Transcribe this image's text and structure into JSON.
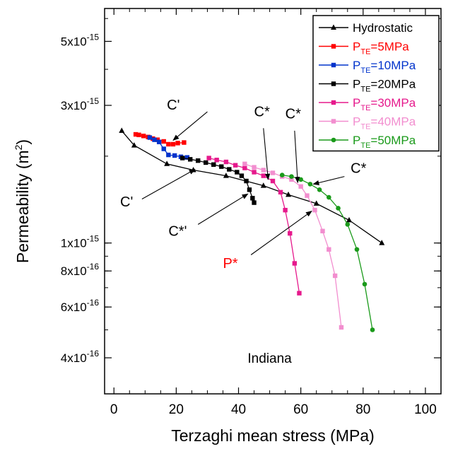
{
  "chart_data": {
    "type": "line",
    "title": "",
    "xlabel": "Terzaghi mean stress (MPa)",
    "ylabel_main": "Permeability (m",
    "ylabel_sup": "2",
    "ylabel_close": ")",
    "xlim": [
      -3,
      105
    ],
    "ylim": [
      3e-16,
      6.5e-15
    ],
    "yscale": "log",
    "xticks": [
      0,
      20,
      40,
      60,
      80,
      100
    ],
    "yticks": [
      {
        "value": 5e-15,
        "mant": "5x10",
        "exp": "-15"
      },
      {
        "value": 3e-15,
        "mant": "3x10",
        "exp": "-15"
      },
      {
        "value": 1e-15,
        "mant": "1x10",
        "exp": "-15"
      },
      {
        "value": 8e-16,
        "mant": "8x10",
        "exp": "-16"
      },
      {
        "value": 6e-16,
        "mant": "6x10",
        "exp": "-16"
      },
      {
        "value": 4e-16,
        "mant": "4x10",
        "exp": "-16"
      }
    ],
    "legend_position": "top-right",
    "sample_label": "Indiana",
    "series": [
      {
        "name": "Hydrostatic",
        "name_base": "Hydrostatic",
        "name_sub": "",
        "name_tail": "",
        "color": "#000000",
        "marker": "triangle",
        "x": [
          2.5,
          6.5,
          17,
          25.5,
          36,
          48,
          56,
          65,
          75.5,
          86
        ],
        "y": [
          2.45e-15,
          2.18e-15,
          1.88e-15,
          1.79e-15,
          1.71e-15,
          1.58e-15,
          1.47e-15,
          1.37e-15,
          1.2e-15,
          1e-15
        ]
      },
      {
        "name": "PTE=5MPa",
        "name_base": "P",
        "name_sub": "TE",
        "name_tail": "=5MPa",
        "color": "#ff0000",
        "marker": "square",
        "x": [
          7,
          8,
          9.5,
          11,
          12.5,
          14,
          16,
          17.5,
          19,
          20.5,
          22.5
        ],
        "y": [
          2.38e-15,
          2.37e-15,
          2.35e-15,
          2.33e-15,
          2.3e-15,
          2.28e-15,
          2.25e-15,
          2.2e-15,
          2.2e-15,
          2.22e-15,
          2.23e-15
        ]
      },
      {
        "name": "PTE=10MPa",
        "name_base": "P",
        "name_sub": "TE",
        "name_tail": "=10MPa",
        "color": "#0033cc",
        "marker": "square",
        "x": [
          11.5,
          13,
          14.5,
          16,
          17.5,
          19.5,
          21.5,
          23.5
        ],
        "y": [
          2.32e-15,
          2.28e-15,
          2.24e-15,
          2.12e-15,
          2.02e-15,
          2.01e-15,
          1.99e-15,
          1.98e-15
        ]
      },
      {
        "name": "PTE=20MPa",
        "name_base": "P",
        "name_sub": "TE",
        "name_tail": "=20MPa",
        "color": "#000000",
        "marker": "square",
        "x": [
          22,
          24.5,
          27,
          29.5,
          32,
          34.5,
          37,
          39.5,
          41,
          42.5,
          43.5,
          44.5,
          45
        ],
        "y": [
          1.97e-15,
          1.95e-15,
          1.93e-15,
          1.9e-15,
          1.87e-15,
          1.84e-15,
          1.8e-15,
          1.76e-15,
          1.71e-15,
          1.64e-15,
          1.53e-15,
          1.43e-15,
          1.38e-15
        ]
      },
      {
        "name": "PTE=30MPa",
        "name_base": "P",
        "name_sub": "TE",
        "name_tail": "=30MPa",
        "color": "#e6198c",
        "marker": "square",
        "x": [
          30.5,
          33,
          36,
          39,
          42,
          45,
          48,
          51,
          53.5,
          55,
          56.5,
          58,
          59.5
        ],
        "y": [
          1.97e-15,
          1.94e-15,
          1.91e-15,
          1.86e-15,
          1.82e-15,
          1.76e-15,
          1.71e-15,
          1.64e-15,
          1.5e-15,
          1.3e-15,
          1.08e-15,
          8.5e-16,
          6.7e-16
        ]
      },
      {
        "name": "PTE=40MPa",
        "name_base": "P",
        "name_sub": "TE",
        "name_tail": "=40MPa",
        "color": "#f28ecf",
        "marker": "square",
        "x": [
          42,
          45,
          48,
          51,
          54,
          57,
          60,
          62,
          64.5,
          67,
          69,
          71,
          73
        ],
        "y": [
          1.88e-15,
          1.83e-15,
          1.79e-15,
          1.75e-15,
          1.7e-15,
          1.66e-15,
          1.57e-15,
          1.46e-15,
          1.3e-15,
          1.1e-15,
          9.5e-16,
          7.7e-16,
          5.1e-16
        ]
      },
      {
        "name": "PTE=50MPa",
        "name_base": "P",
        "name_sub": "TE",
        "name_tail": "=50MPa",
        "color": "#1a9a1a",
        "marker": "circle",
        "x": [
          54,
          57,
          60,
          63,
          66,
          69,
          72,
          75,
          78,
          80.5,
          83
        ],
        "y": [
          1.72e-15,
          1.7e-15,
          1.66e-15,
          1.6e-15,
          1.53e-15,
          1.44e-15,
          1.32e-15,
          1.16e-15,
          9.5e-16,
          7.2e-16,
          5e-16
        ]
      }
    ],
    "annotations": [
      {
        "text": "C'",
        "color": "#000000",
        "tx": 17,
        "ty": 2.9e-15,
        "ax": 19,
        "ay": 2.27e-15,
        "lx": 30,
        "ly": 2.85e-15,
        "anchor": "start"
      },
      {
        "text": "C'",
        "color": "#000000",
        "tx": 2,
        "ty": 1.34e-15,
        "ax": 26,
        "ay": 1.8e-15,
        "lx": 9,
        "ly": 1.42e-15,
        "anchor": "start"
      },
      {
        "text": "C*",
        "color": "#000000",
        "tx": 45,
        "ty": 2.75e-15,
        "ax": 49.5,
        "ay": 1.66e-15,
        "lx": 48,
        "ly": 2.5e-15,
        "anchor": "start"
      },
      {
        "text": "C*",
        "color": "#000000",
        "tx": 55,
        "ty": 2.7e-15,
        "ax": 59,
        "ay": 1.62e-15,
        "lx": 58,
        "ly": 2.45e-15,
        "anchor": "start"
      },
      {
        "text": "C*",
        "color": "#000000",
        "tx": 76,
        "ty": 1.75e-15,
        "ax": 64,
        "ay": 1.6e-15,
        "lx": 74,
        "ly": 1.7e-15,
        "anchor": "start"
      },
      {
        "text": "C*'",
        "color": "#000000",
        "tx": 17.5,
        "ty": 1.06e-15,
        "ax": 43,
        "ay": 1.48e-15,
        "lx": 27,
        "ly": 1.16e-15,
        "anchor": "start"
      },
      {
        "text": "P*",
        "color": "#ff0000",
        "tx": 35,
        "ty": 8.2e-16,
        "ax": 63.5,
        "ay": 1.29e-15,
        "lx": 44,
        "ly": 9.1e-16,
        "anchor": "start"
      }
    ]
  }
}
